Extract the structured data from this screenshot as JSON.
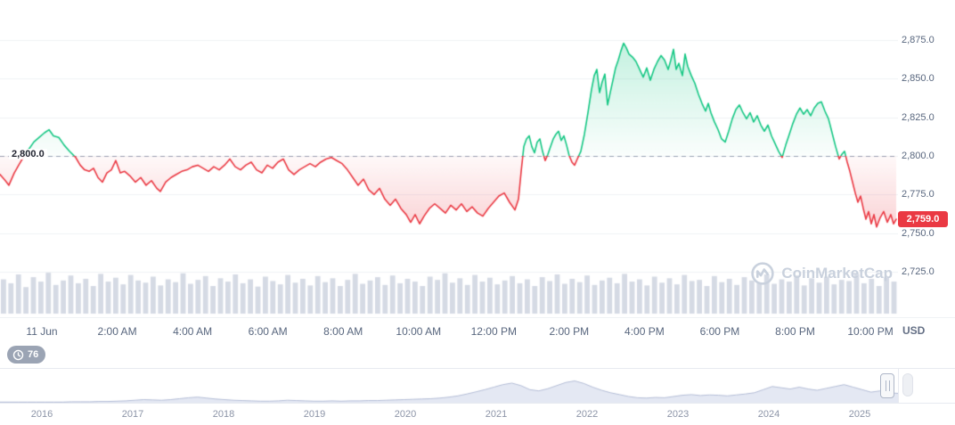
{
  "chart_data": {
    "type": "line",
    "unit": "USD",
    "baseline": 2800,
    "baseline_label": "2,800.0",
    "current_price": 2759,
    "current_price_label": "2,759.0",
    "trend_colors": {
      "up": "#16c784",
      "down": "#ea3943",
      "volume": "#d5dae4",
      "grid": "#eff2f5",
      "baseline_dash": "#99a3b5"
    },
    "y_axis": {
      "min": 2725,
      "max": 2875,
      "tick_step": 25,
      "labels": [
        "2,875.0",
        "2,850.0",
        "2,825.0",
        "2,800.0",
        "2,775.0",
        "2,750.0",
        "2,725.0"
      ]
    },
    "x_axis": {
      "labels": [
        "11 Jun",
        "2:00 AM",
        "4:00 AM",
        "6:00 AM",
        "8:00 AM",
        "10:00 AM",
        "12:00 PM",
        "2:00 PM",
        "4:00 PM",
        "6:00 PM",
        "8:00 PM",
        "10:00 PM"
      ]
    },
    "points": [
      [
        0,
        2788
      ],
      [
        6,
        2784
      ],
      [
        10,
        2781
      ],
      [
        16,
        2789
      ],
      [
        22,
        2795
      ],
      [
        27,
        2800
      ],
      [
        32,
        2804
      ],
      [
        38,
        2809
      ],
      [
        44,
        2812
      ],
      [
        50,
        2815
      ],
      [
        55,
        2817
      ],
      [
        60,
        2813
      ],
      [
        66,
        2812
      ],
      [
        72,
        2807
      ],
      [
        78,
        2803
      ],
      [
        85,
        2799
      ],
      [
        90,
        2794
      ],
      [
        95,
        2791
      ],
      [
        100,
        2790
      ],
      [
        105,
        2792
      ],
      [
        110,
        2786
      ],
      [
        115,
        2783
      ],
      [
        120,
        2789
      ],
      [
        125,
        2791
      ],
      [
        130,
        2797
      ],
      [
        135,
        2789
      ],
      [
        140,
        2790
      ],
      [
        146,
        2787
      ],
      [
        152,
        2783
      ],
      [
        158,
        2786
      ],
      [
        164,
        2781
      ],
      [
        170,
        2784
      ],
      [
        176,
        2779
      ],
      [
        180,
        2777
      ],
      [
        186,
        2783
      ],
      [
        192,
        2786
      ],
      [
        198,
        2788
      ],
      [
        204,
        2790
      ],
      [
        210,
        2791
      ],
      [
        216,
        2793
      ],
      [
        222,
        2794
      ],
      [
        228,
        2792
      ],
      [
        234,
        2790
      ],
      [
        240,
        2793
      ],
      [
        246,
        2791
      ],
      [
        252,
        2794
      ],
      [
        258,
        2798
      ],
      [
        264,
        2793
      ],
      [
        270,
        2791
      ],
      [
        276,
        2794
      ],
      [
        282,
        2796
      ],
      [
        288,
        2791
      ],
      [
        294,
        2789
      ],
      [
        300,
        2794
      ],
      [
        306,
        2792
      ],
      [
        312,
        2796
      ],
      [
        318,
        2798
      ],
      [
        324,
        2791
      ],
      [
        330,
        2788
      ],
      [
        336,
        2791
      ],
      [
        342,
        2793
      ],
      [
        348,
        2795
      ],
      [
        354,
        2793
      ],
      [
        360,
        2796
      ],
      [
        366,
        2798
      ],
      [
        372,
        2799
      ],
      [
        378,
        2797
      ],
      [
        384,
        2795
      ],
      [
        390,
        2791
      ],
      [
        396,
        2786
      ],
      [
        402,
        2781
      ],
      [
        408,
        2785
      ],
      [
        414,
        2778
      ],
      [
        420,
        2775
      ],
      [
        426,
        2779
      ],
      [
        432,
        2772
      ],
      [
        438,
        2768
      ],
      [
        444,
        2772
      ],
      [
        450,
        2766
      ],
      [
        456,
        2762
      ],
      [
        461,
        2757
      ],
      [
        466,
        2762
      ],
      [
        471,
        2756
      ],
      [
        476,
        2761
      ],
      [
        482,
        2766
      ],
      [
        488,
        2769
      ],
      [
        494,
        2766
      ],
      [
        500,
        2763
      ],
      [
        506,
        2768
      ],
      [
        512,
        2765
      ],
      [
        518,
        2769
      ],
      [
        524,
        2764
      ],
      [
        530,
        2767
      ],
      [
        536,
        2763
      ],
      [
        542,
        2761
      ],
      [
        548,
        2766
      ],
      [
        554,
        2770
      ],
      [
        560,
        2774
      ],
      [
        566,
        2776
      ],
      [
        572,
        2770
      ],
      [
        578,
        2765
      ],
      [
        582,
        2772
      ],
      [
        585,
        2790
      ],
      [
        588,
        2806
      ],
      [
        591,
        2811
      ],
      [
        594,
        2813
      ],
      [
        597,
        2806
      ],
      [
        600,
        2802
      ],
      [
        603,
        2809
      ],
      [
        606,
        2811
      ],
      [
        609,
        2803
      ],
      [
        612,
        2797
      ],
      [
        615,
        2801
      ],
      [
        618,
        2806
      ],
      [
        621,
        2811
      ],
      [
        624,
        2814
      ],
      [
        627,
        2816
      ],
      [
        630,
        2810
      ],
      [
        633,
        2813
      ],
      [
        636,
        2807
      ],
      [
        639,
        2800
      ],
      [
        642,
        2796
      ],
      [
        645,
        2794
      ],
      [
        648,
        2798
      ],
      [
        652,
        2803
      ],
      [
        656,
        2814
      ],
      [
        660,
        2828
      ],
      [
        664,
        2843
      ],
      [
        667,
        2852
      ],
      [
        670,
        2856
      ],
      [
        673,
        2841
      ],
      [
        676,
        2848
      ],
      [
        679,
        2853
      ],
      [
        682,
        2833
      ],
      [
        685,
        2841
      ],
      [
        688,
        2849
      ],
      [
        691,
        2857
      ],
      [
        694,
        2862
      ],
      [
        697,
        2868
      ],
      [
        700,
        2873
      ],
      [
        703,
        2870
      ],
      [
        706,
        2866
      ],
      [
        710,
        2864
      ],
      [
        714,
        2861
      ],
      [
        718,
        2856
      ],
      [
        722,
        2851
      ],
      [
        726,
        2857
      ],
      [
        730,
        2849
      ],
      [
        734,
        2856
      ],
      [
        738,
        2861
      ],
      [
        742,
        2865
      ],
      [
        746,
        2862
      ],
      [
        750,
        2856
      ],
      [
        753,
        2862
      ],
      [
        756,
        2869
      ],
      [
        759,
        2856
      ],
      [
        762,
        2860
      ],
      [
        766,
        2852
      ],
      [
        769,
        2866
      ],
      [
        772,
        2858
      ],
      [
        776,
        2852
      ],
      [
        780,
        2847
      ],
      [
        784,
        2840
      ],
      [
        788,
        2834
      ],
      [
        792,
        2829
      ],
      [
        795,
        2834
      ],
      [
        798,
        2828
      ],
      [
        802,
        2822
      ],
      [
        806,
        2817
      ],
      [
        810,
        2811
      ],
      [
        814,
        2809
      ],
      [
        818,
        2816
      ],
      [
        822,
        2824
      ],
      [
        826,
        2830
      ],
      [
        830,
        2833
      ],
      [
        834,
        2828
      ],
      [
        838,
        2824
      ],
      [
        842,
        2828
      ],
      [
        846,
        2822
      ],
      [
        850,
        2826
      ],
      [
        854,
        2820
      ],
      [
        858,
        2816
      ],
      [
        862,
        2820
      ],
      [
        866,
        2813
      ],
      [
        870,
        2808
      ],
      [
        874,
        2803
      ],
      [
        878,
        2799
      ],
      [
        882,
        2807
      ],
      [
        886,
        2814
      ],
      [
        890,
        2821
      ],
      [
        894,
        2827
      ],
      [
        898,
        2831
      ],
      [
        902,
        2827
      ],
      [
        906,
        2830
      ],
      [
        910,
        2826
      ],
      [
        914,
        2831
      ],
      [
        918,
        2834
      ],
      [
        922,
        2835
      ],
      [
        926,
        2829
      ],
      [
        930,
        2824
      ],
      [
        934,
        2815
      ],
      [
        938,
        2806
      ],
      [
        942,
        2798
      ],
      [
        945,
        2801
      ],
      [
        948,
        2803
      ],
      [
        951,
        2796
      ],
      [
        954,
        2790
      ],
      [
        957,
        2783
      ],
      [
        960,
        2776
      ],
      [
        963,
        2770
      ],
      [
        966,
        2774
      ],
      [
        969,
        2766
      ],
      [
        972,
        2759
      ],
      [
        975,
        2764
      ],
      [
        978,
        2756
      ],
      [
        981,
        2762
      ],
      [
        984,
        2754
      ],
      [
        988,
        2760
      ],
      [
        992,
        2764
      ],
      [
        996,
        2757
      ],
      [
        1000,
        2762
      ],
      [
        1003,
        2756
      ],
      [
        1006,
        2759
      ]
    ],
    "volume": [
      0.62,
      0.55,
      0.71,
      0.48,
      0.66,
      0.58,
      0.74,
      0.52,
      0.6,
      0.69,
      0.55,
      0.63,
      0.5,
      0.72,
      0.58,
      0.65,
      0.53,
      0.7,
      0.6,
      0.56,
      0.67,
      0.51,
      0.62,
      0.57,
      0.73,
      0.54,
      0.61,
      0.68,
      0.5,
      0.64,
      0.58,
      0.71,
      0.55,
      0.62,
      0.49,
      0.67,
      0.59,
      0.53,
      0.7,
      0.56,
      0.63,
      0.51,
      0.68,
      0.57,
      0.64,
      0.5,
      0.61,
      0.72,
      0.54,
      0.6,
      0.66,
      0.52,
      0.69,
      0.55,
      0.63,
      0.58,
      0.5,
      0.67,
      0.61,
      0.73,
      0.56,
      0.64,
      0.52,
      0.7,
      0.58,
      0.65,
      0.53,
      0.6,
      0.68,
      0.55,
      0.62,
      0.5,
      0.66,
      0.59,
      0.71,
      0.54,
      0.63,
      0.57,
      0.69,
      0.52,
      0.6,
      0.65,
      0.55,
      0.72,
      0.58,
      0.62,
      0.51,
      0.67,
      0.56,
      0.64,
      0.53,
      0.7,
      0.59,
      0.61,
      0.5,
      0.68,
      0.57,
      0.63,
      0.52,
      0.66,
      0.6,
      0.55,
      0.71,
      0.54,
      0.62,
      0.58,
      0.69,
      0.51,
      0.64,
      0.56,
      0.67,
      0.53,
      0.61,
      0.59,
      0.72,
      0.55,
      0.63,
      0.5,
      0.66,
      0.58
    ],
    "navigator": {
      "type": "area",
      "years": [
        "2016",
        "2017",
        "2018",
        "2019",
        "2020",
        "2021",
        "2022",
        "2023",
        "2024",
        "2025"
      ],
      "values": [
        0.02,
        0.02,
        0.02,
        0.02,
        0.02,
        0.02,
        0.02,
        0.02,
        0.03,
        0.03,
        0.03,
        0.04,
        0.04,
        0.05,
        0.06,
        0.08,
        0.1,
        0.09,
        0.08,
        0.1,
        0.13,
        0.16,
        0.18,
        0.15,
        0.12,
        0.1,
        0.08,
        0.07,
        0.06,
        0.05,
        0.05,
        0.06,
        0.08,
        0.07,
        0.06,
        0.05,
        0.05,
        0.06,
        0.05,
        0.06,
        0.06,
        0.07,
        0.07,
        0.08,
        0.09,
        0.1,
        0.11,
        0.12,
        0.13,
        0.15,
        0.18,
        0.22,
        0.28,
        0.35,
        0.42,
        0.5,
        0.58,
        0.63,
        0.55,
        0.42,
        0.38,
        0.45,
        0.55,
        0.65,
        0.7,
        0.62,
        0.5,
        0.4,
        0.32,
        0.26,
        0.2,
        0.16,
        0.15,
        0.17,
        0.16,
        0.2,
        0.24,
        0.26,
        0.23,
        0.25,
        0.24,
        0.22,
        0.25,
        0.28,
        0.32,
        0.42,
        0.52,
        0.48,
        0.44,
        0.5,
        0.44,
        0.4,
        0.46,
        0.52,
        0.58,
        0.5,
        0.42,
        0.34,
        0.38,
        0.32,
        0.3
      ]
    }
  },
  "watermark": {
    "label": "CoinMarketCap"
  },
  "history_badge": {
    "count": "76"
  }
}
